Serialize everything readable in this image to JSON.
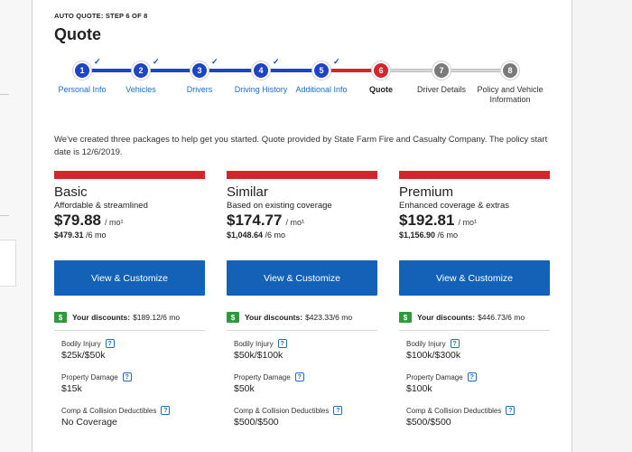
{
  "header": {
    "step_label": "AUTO QUOTE: STEP 6 OF 8",
    "title": "Quote"
  },
  "progress": {
    "steps": [
      {
        "num": "1",
        "label": "Personal Info",
        "status": "done"
      },
      {
        "num": "2",
        "label": "Vehicles",
        "status": "done"
      },
      {
        "num": "3",
        "label": "Drivers",
        "status": "done"
      },
      {
        "num": "4",
        "label": "Driving History",
        "status": "done"
      },
      {
        "num": "5",
        "label": "Additional Info",
        "status": "done"
      },
      {
        "num": "6",
        "label": "Quote",
        "status": "current"
      },
      {
        "num": "7",
        "label": "Driver Details",
        "status": "todo"
      },
      {
        "num": "8",
        "label": "Policy and Vehicle Information",
        "status": "todo"
      }
    ],
    "check_glyph": "✓"
  },
  "intro": "We've created three packages to help get you started. Quote provided by State Farm Fire and Casualty Company. The policy start date is 12/6/2019.",
  "packages": [
    {
      "name": "Basic",
      "desc": "Affordable & streamlined",
      "price": "$79.88",
      "per": "/ mo¹",
      "semi_price": "$479.31",
      "semi_per": " /6 mo",
      "button": "View & Customize",
      "discount_label": "Your discounts:",
      "discount_value": "$189.12/6 mo",
      "coverages": [
        {
          "label": "Bodily Injury",
          "value": "$25k/$50k"
        },
        {
          "label": "Property Damage",
          "value": "$15k"
        },
        {
          "label": "Comp & Collision Deductibles",
          "value": "No Coverage"
        }
      ]
    },
    {
      "name": "Similar",
      "desc": "Based on existing coverage",
      "price": "$174.77",
      "per": "/ mo¹",
      "semi_price": "$1,048.64",
      "semi_per": " /6 mo",
      "button": "View & Customize",
      "discount_label": "Your discounts:",
      "discount_value": "$423.33/6 mo",
      "coverages": [
        {
          "label": "Bodily Injury",
          "value": "$50k/$100k"
        },
        {
          "label": "Property Damage",
          "value": "$50k"
        },
        {
          "label": "Comp & Collision Deductibles",
          "value": "$500/$500"
        }
      ]
    },
    {
      "name": "Premium",
      "desc": "Enhanced coverage & extras",
      "price": "$192.81",
      "per": "/ mo¹",
      "semi_price": "$1,156.90",
      "semi_per": " /6 mo",
      "button": "View & Customize",
      "discount_label": "Your discounts:",
      "discount_value": "$446.73/6 mo",
      "coverages": [
        {
          "label": "Bodily Injury",
          "value": "$100k/$300k"
        },
        {
          "label": "Property Damage",
          "value": "$100k"
        },
        {
          "label": "Comp & Collision Deductibles",
          "value": "$500/$500"
        }
      ]
    }
  ],
  "icons": {
    "dollar": "$",
    "help": "?"
  },
  "colors": {
    "accent_blue": "#1c44c4",
    "button_blue": "#1462b8",
    "current_red": "#d0262c",
    "discount_green": "#2e9a3c"
  }
}
